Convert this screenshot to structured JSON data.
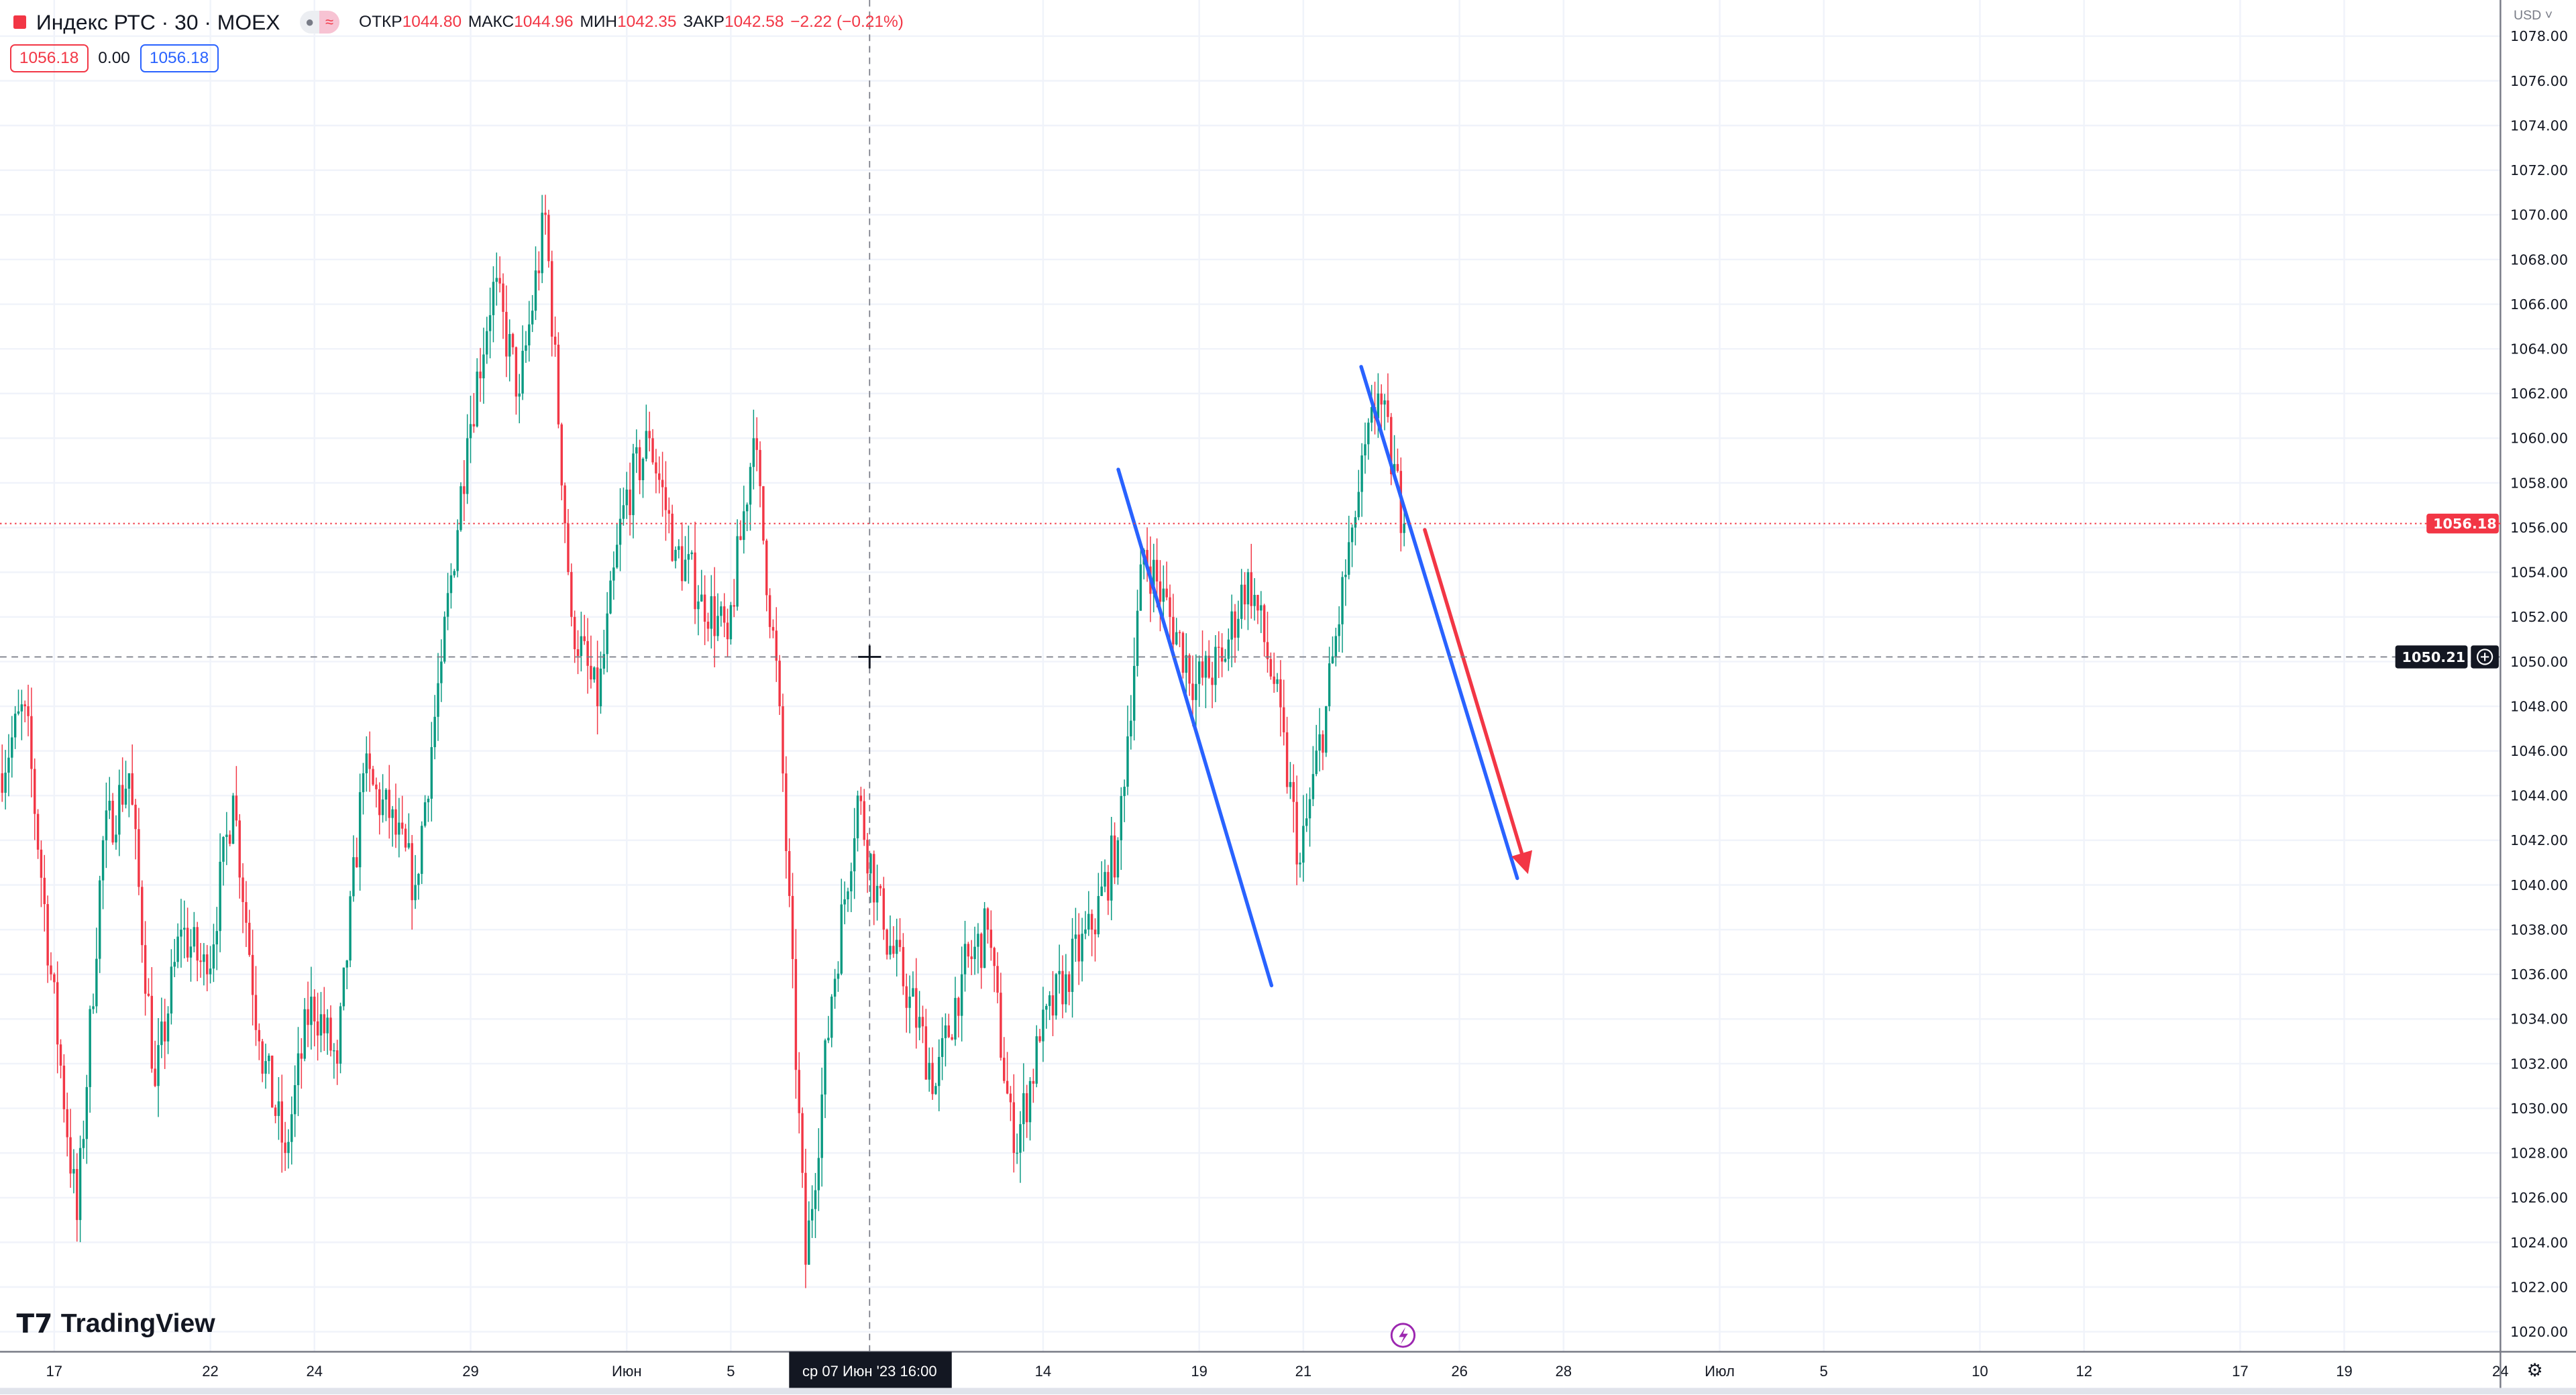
{
  "legend": {
    "symbol": "Индекс РТС · 30 · MOEX",
    "pill_icons": [
      "minus-icon",
      "approx-icon"
    ],
    "fields": [
      {
        "label": "ОТКР",
        "value": "1044.80"
      },
      {
        "label": "МАКС",
        "value": "1044.96"
      },
      {
        "label": "МИН",
        "value": "1042.35"
      },
      {
        "label": "ЗАКР",
        "value": "1042.58"
      }
    ],
    "change": "−2.22 (−0.21%)"
  },
  "order": {
    "sell": "1056.18",
    "spread": "0.00",
    "buy": "1056.18"
  },
  "price_axis": {
    "currency": "USD",
    "labels": [
      "1078.00",
      "1076.00",
      "1074.00",
      "1072.00",
      "1070.00",
      "1068.00",
      "1066.00",
      "1064.00",
      "1062.00",
      "1060.00",
      "1058.00",
      "1056.00",
      "1054.00",
      "1052.00",
      "1050.00",
      "1048.00",
      "1046.00",
      "1044.00",
      "1042.00",
      "1040.00",
      "1038.00",
      "1036.00",
      "1034.00",
      "1032.00",
      "1030.00",
      "1028.00",
      "1026.00",
      "1024.00",
      "1022.00",
      "1020.00"
    ],
    "last_price_label": "1056.18",
    "crosshair_price_label": "1050.21"
  },
  "time_axis": {
    "ticks": [
      {
        "date": "2023-05-17",
        "label": "17"
      },
      {
        "date": "2023-05-22",
        "label": "22"
      },
      {
        "date": "2023-05-24",
        "label": "24"
      },
      {
        "date": "2023-05-29",
        "label": "29"
      },
      {
        "date": "2023-06-01",
        "label": "Июн"
      },
      {
        "date": "2023-06-05",
        "label": "5"
      },
      {
        "date": "2023-06-14",
        "label": "14"
      },
      {
        "date": "2023-06-19",
        "label": "19"
      },
      {
        "date": "2023-06-21",
        "label": "21"
      },
      {
        "date": "2023-06-26",
        "label": "26"
      },
      {
        "date": "2023-06-28",
        "label": "28"
      },
      {
        "date": "2023-07-03",
        "label": "Июл"
      },
      {
        "date": "2023-07-05",
        "label": "5"
      },
      {
        "date": "2023-07-10",
        "label": "10"
      },
      {
        "date": "2023-07-12",
        "label": "12"
      },
      {
        "date": "2023-07-17",
        "label": "17"
      },
      {
        "date": "2023-07-19",
        "label": "19"
      },
      {
        "date": "2023-07-24",
        "label": "24"
      }
    ],
    "crosshair_label": "ср 07 Июн '23   16:00"
  },
  "chart_data": {
    "type": "candlestick",
    "interval": "30",
    "ylim": [
      1020,
      1078
    ],
    "grid": true,
    "colors": {
      "up": "#089981",
      "down": "#f23645",
      "trend": "#2962ff",
      "arrow": "#f23645",
      "last_price": "#f23645"
    },
    "session_prices": [
      {
        "date": "2023-05-16",
        "values": [
          1048,
          1036
        ]
      },
      {
        "date": "2023-05-17",
        "values": [
          1025,
          1042
        ]
      },
      {
        "date": "2023-05-18",
        "values": [
          1045,
          1031
        ]
      },
      {
        "date": "2023-05-19",
        "values": [
          1038,
          1036
        ]
      },
      {
        "date": "2023-05-22",
        "values": [
          1044,
          1033
        ]
      },
      {
        "date": "2023-05-23",
        "values": [
          1028,
          1035
        ]
      },
      {
        "date": "2023-05-24",
        "values": [
          1032,
          1045
        ]
      },
      {
        "date": "2023-05-25",
        "values": [
          1043,
          1040
        ]
      },
      {
        "date": "2023-05-26",
        "values": [
          1050,
          1060
        ]
      },
      {
        "date": "2023-05-29",
        "values": [
          1067,
          1062
        ]
      },
      {
        "date": "2023-05-30",
        "values": [
          1070,
          1052
        ]
      },
      {
        "date": "2023-05-31",
        "values": [
          1048,
          1057
        ]
      },
      {
        "date": "2023-06-01",
        "values": [
          1060,
          1055
        ]
      },
      {
        "date": "2023-06-02",
        "values": [
          1053,
          1051
        ]
      },
      {
        "date": "2023-06-05",
        "values": [
          1060,
          1048
        ]
      },
      {
        "date": "2023-06-06",
        "values": [
          1023,
          1035
        ]
      },
      {
        "date": "2023-06-07",
        "values": [
          1044,
          1038
        ]
      },
      {
        "date": "2023-06-08",
        "values": [
          1035,
          1031
        ]
      },
      {
        "date": "2023-06-09",
        "values": [
          1036,
          1038
        ]
      },
      {
        "date": "2023-06-13",
        "values": [
          1028,
          1033
        ]
      },
      {
        "date": "2023-06-14",
        "values": [
          1036,
          1038
        ]
      },
      {
        "date": "2023-06-15",
        "values": [
          1042,
          1055
        ]
      },
      {
        "date": "2023-06-16",
        "values": [
          1052,
          1049
        ]
      },
      {
        "date": "2023-06-19",
        "values": [
          1050,
          1054
        ]
      },
      {
        "date": "2023-06-20",
        "values": [
          1049,
          1041
        ]
      },
      {
        "date": "2023-06-21",
        "values": [
          1048,
          1056
        ]
      },
      {
        "date": "2023-06-22",
        "values": [
          1062,
          1056.18
        ]
      }
    ],
    "last_price": 1056.18,
    "crosshair": {
      "time": "2023-06-07T16:00",
      "price": 1050.21
    },
    "drawings": [
      {
        "type": "trend_line",
        "from": {
          "time": "2023-06-15T14:00",
          "price": 1058.6
        },
        "to": {
          "time": "2023-06-20T13:30",
          "price": 1035.5
        }
      },
      {
        "type": "trend_line",
        "from": {
          "time": "2023-06-22T11:00",
          "price": 1063.2
        },
        "to": {
          "time": "2023-06-27T11:00",
          "price": 1040.3
        }
      },
      {
        "type": "arrow",
        "from": {
          "time": "2023-06-23T13:00",
          "price": 1055.9
        },
        "to": {
          "time": "2023-06-27T12:30",
          "price": 1040.8
        }
      }
    ]
  },
  "branding": {
    "logo": "TradingView"
  },
  "icons": {
    "settings": "gear-icon",
    "event": "lightning-icon",
    "add": "plus-circle-icon"
  }
}
